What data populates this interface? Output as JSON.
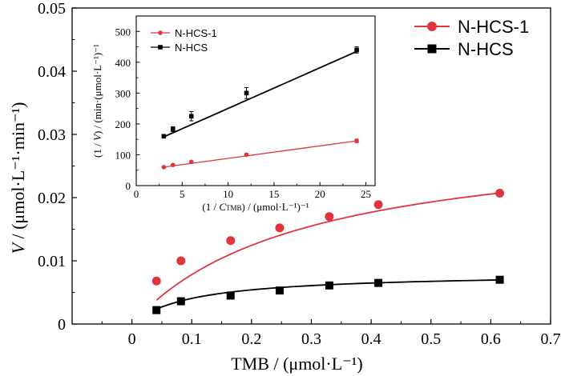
{
  "chart_data": [
    {
      "type": "scatter",
      "xlabel": "TMB / (μmol·L⁻¹)",
      "ylabel_italic": "V",
      "ylabel_rest": " / (μmol·L⁻¹·min⁻¹)",
      "xlim": [
        -0.1,
        0.7
      ],
      "ylim": [
        0,
        0.05
      ],
      "xticks": [
        "0",
        "0.1",
        "0.2",
        "0.3",
        "0.4",
        "0.5",
        "0.6",
        "0.7"
      ],
      "xtick_values": [
        0,
        0.1,
        0.2,
        0.3,
        0.4,
        0.5,
        0.6,
        0.7
      ],
      "yticks": [
        "0",
        "0.01",
        "0.02",
        "0.03",
        "0.04",
        "0.05"
      ],
      "ytick_values": [
        0,
        0.01,
        0.02,
        0.03,
        0.04,
        0.05
      ],
      "legend_position": "top-right",
      "series": [
        {
          "name": "N-HCS-1",
          "marker": "circle",
          "color": "#e0343f",
          "x": [
            0.041,
            0.082,
            0.165,
            0.247,
            0.33,
            0.412,
            0.615
          ],
          "y": [
            0.0068,
            0.01,
            0.0132,
            0.0152,
            0.017,
            0.0189,
            0.0207
          ],
          "err": [
            0.0002,
            0.0007,
            0.0006,
            0.0003,
            0.0004,
            0.0004,
            0.0006
          ],
          "fit": {
            "vmax": 0.0305,
            "km": 0.29,
            "x_start": 0.041,
            "x_end": 0.615
          }
        },
        {
          "name": "N-HCS",
          "marker": "square",
          "color": "#000000",
          "x": [
            0.041,
            0.082,
            0.165,
            0.247,
            0.33,
            0.412,
            0.615
          ],
          "y": [
            0.0022,
            0.0036,
            0.0045,
            0.0053,
            0.0061,
            0.0065,
            0.007
          ],
          "err": [
            0.0002,
            0.0002,
            0.0002,
            0.0003,
            0.0002,
            0.0002,
            0.0002
          ],
          "fit": {
            "vmax": 0.0081,
            "km": 0.1,
            "x_start": 0.041,
            "x_end": 0.615
          }
        }
      ]
    },
    {
      "type": "scatter",
      "role": "inset",
      "xlabel_pre": "(1 / ",
      "xlabel_var": "C",
      "xlabel_sub": "TMB",
      "xlabel_post": ") / (μmol·L⁻¹)⁻¹",
      "ylabel_pre": "(1 / ",
      "ylabel_var": "V",
      "ylabel_post": ") / (min·(μmol·L⁻¹)⁻¹",
      "xlim": [
        0,
        26
      ],
      "ylim": [
        0,
        550
      ],
      "xticks": [
        "0",
        "5",
        "10",
        "15",
        "20",
        "25"
      ],
      "xtick_values": [
        0,
        5,
        10,
        15,
        20,
        25
      ],
      "yticks": [
        "0",
        "100",
        "200",
        "300",
        "400",
        "500"
      ],
      "ytick_values": [
        0,
        100,
        200,
        300,
        400,
        500
      ],
      "legend_position": "top-left",
      "series": [
        {
          "name": "N-HCS-1",
          "marker": "circle",
          "color": "#e0343f",
          "x": [
            3,
            4,
            6,
            12,
            24
          ],
          "y": [
            60,
            67,
            77,
            100,
            145
          ],
          "err": [
            2,
            2,
            3,
            4,
            6
          ],
          "fit": {
            "x": [
              3,
              24
            ],
            "y": [
              60,
              145
            ]
          }
        },
        {
          "name": "N-HCS",
          "marker": "square",
          "color": "#000000",
          "x": [
            3,
            4,
            6,
            12,
            24
          ],
          "y": [
            160,
            183,
            225,
            300,
            440
          ],
          "err": [
            5,
            8,
            15,
            18,
            10
          ],
          "fit": {
            "x": [
              3,
              24
            ],
            "y": [
              158,
              435
            ]
          }
        }
      ]
    }
  ]
}
